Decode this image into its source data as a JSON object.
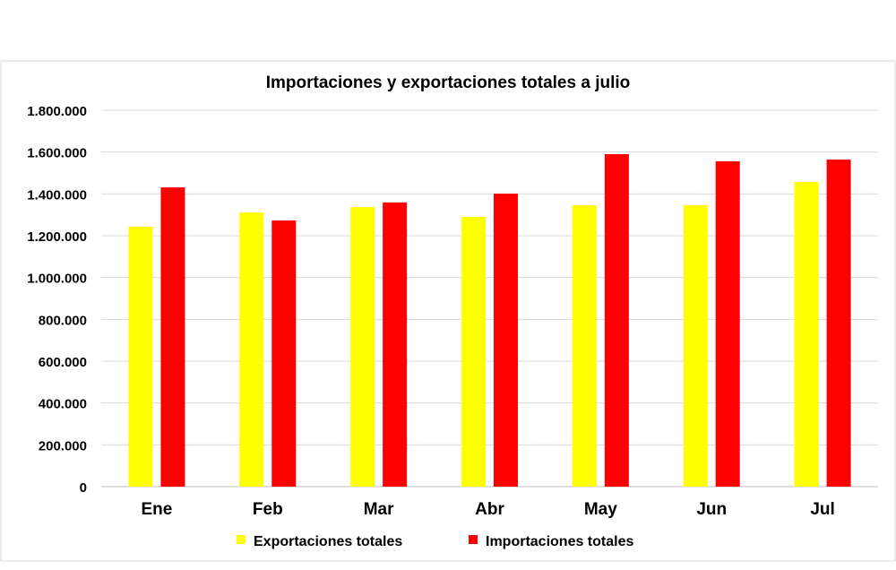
{
  "chart_data": {
    "type": "bar",
    "title": "Importaciones y exportaciones totales a julio",
    "xlabel": "",
    "ylabel": "",
    "categories": [
      "Ene",
      "Feb",
      "Mar",
      "Abr",
      "May",
      "Jun",
      "Jul"
    ],
    "series": [
      {
        "name": "Exportaciones totales",
        "color": "#ffff00",
        "values": [
          1243000,
          1311000,
          1337000,
          1290000,
          1346000,
          1346000,
          1457000
        ]
      },
      {
        "name": "Importaciones totales",
        "color": "#ff0000",
        "values": [
          1431000,
          1273000,
          1359000,
          1401000,
          1590000,
          1556000,
          1564000
        ]
      }
    ],
    "ylim": [
      0,
      1800000
    ],
    "yticks": [
      0,
      200000,
      400000,
      600000,
      800000,
      1000000,
      1200000,
      1400000,
      1600000,
      1800000
    ],
    "ytick_labels": [
      "0",
      "200.000",
      "400.000",
      "600.000",
      "800.000",
      "1.000.000",
      "1.200.000",
      "1.400.000",
      "1.600.000",
      "1.800.000"
    ],
    "grid": true,
    "legend_position": "bottom"
  }
}
